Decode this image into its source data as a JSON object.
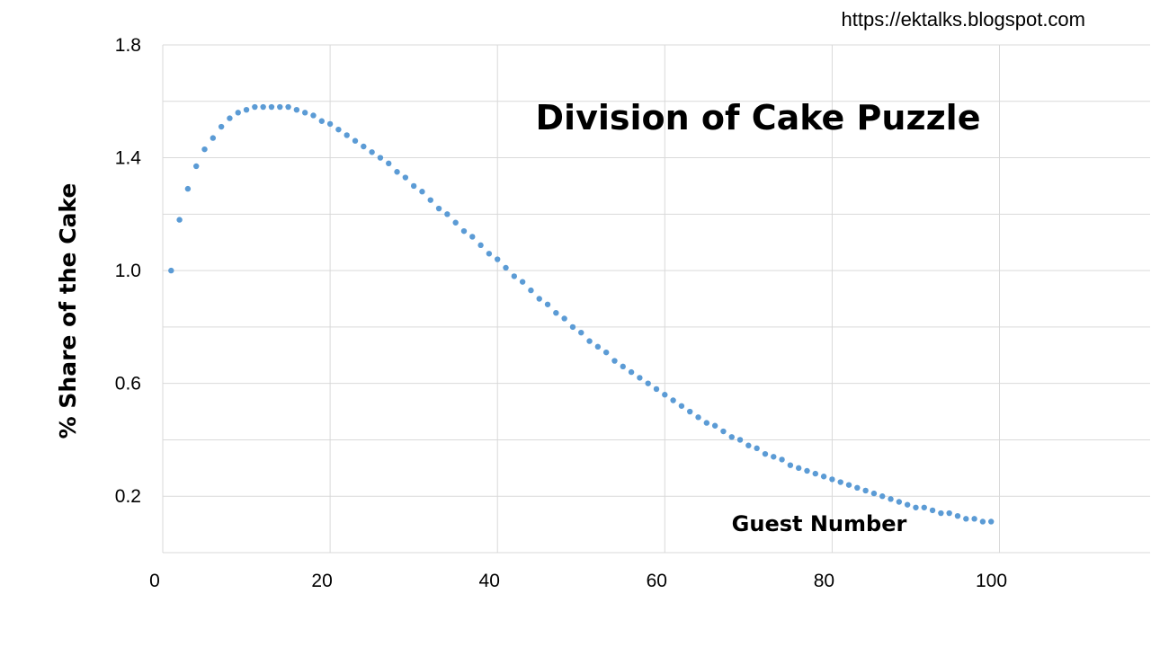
{
  "source_url": "https://ektalks.blogspot.com",
  "chart_data": {
    "type": "scatter",
    "title": "Division of Cake Puzzle",
    "xlabel": "Guest Number",
    "ylabel": "% Share of the Cake",
    "xlim": [
      0,
      118
    ],
    "ylim": [
      0,
      1.8
    ],
    "x_ticks": [
      0,
      20,
      40,
      60,
      80,
      100
    ],
    "x_tick_labels": [
      "0",
      "20",
      "40",
      "60",
      "80",
      "100"
    ],
    "y_ticks": [
      0.2,
      0.6,
      1.0,
      1.4,
      1.8
    ],
    "y_tick_labels": [
      "0.2",
      "0.6",
      "1.0",
      "1.4",
      "1.8"
    ],
    "grid": true,
    "legend": "none",
    "color": "#5b9bd5",
    "series": [
      {
        "x": [
          1,
          2,
          3,
          4,
          5,
          6,
          7,
          8,
          9,
          10,
          11,
          12,
          13,
          14,
          15,
          16,
          17,
          18,
          19,
          20,
          21,
          22,
          23,
          24,
          25,
          26,
          27,
          28,
          29,
          30,
          31,
          32,
          33,
          34,
          35,
          36,
          37,
          38,
          39,
          40,
          41,
          42,
          43,
          44,
          45,
          46,
          47,
          48,
          49,
          50,
          51,
          52,
          53,
          54,
          55,
          56,
          57,
          58,
          59,
          60,
          61,
          62,
          63,
          64,
          65,
          66,
          67,
          68,
          69,
          70,
          71,
          72,
          73,
          74,
          75,
          76,
          77,
          78,
          79,
          80,
          81,
          82,
          83,
          84,
          85,
          86,
          87,
          88,
          89,
          90,
          91,
          92,
          93,
          94,
          95,
          96,
          97,
          98,
          99
        ],
        "y": [
          1.0,
          1.18,
          1.29,
          1.37,
          1.43,
          1.47,
          1.51,
          1.54,
          1.56,
          1.57,
          1.58,
          1.58,
          1.58,
          1.58,
          1.58,
          1.57,
          1.56,
          1.55,
          1.53,
          1.52,
          1.5,
          1.48,
          1.46,
          1.44,
          1.42,
          1.4,
          1.38,
          1.35,
          1.33,
          1.3,
          1.28,
          1.25,
          1.22,
          1.2,
          1.17,
          1.14,
          1.12,
          1.09,
          1.06,
          1.04,
          1.01,
          0.98,
          0.96,
          0.93,
          0.9,
          0.88,
          0.85,
          0.83,
          0.8,
          0.78,
          0.75,
          0.73,
          0.71,
          0.68,
          0.66,
          0.64,
          0.62,
          0.6,
          0.58,
          0.56,
          0.54,
          0.52,
          0.5,
          0.48,
          0.46,
          0.45,
          0.43,
          0.41,
          0.4,
          0.38,
          0.37,
          0.35,
          0.34,
          0.33,
          0.31,
          0.3,
          0.29,
          0.28,
          0.27,
          0.26,
          0.25,
          0.24,
          0.23,
          0.22,
          0.21,
          0.2,
          0.19,
          0.18,
          0.17,
          0.16,
          0.16,
          0.15,
          0.14,
          0.14,
          0.13,
          0.12,
          0.12,
          0.11,
          0.11
        ]
      }
    ]
  }
}
